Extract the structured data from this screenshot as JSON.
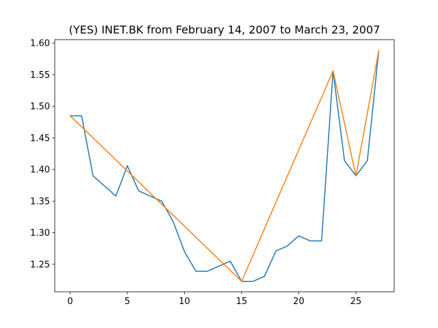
{
  "chart_data": {
    "type": "line",
    "title": "(YES) INET.BK from February 14, 2007 to March 23, 2007",
    "xlabel": "",
    "ylabel": "",
    "xlim": [
      -1.35,
      28.35
    ],
    "ylim": [
      1.2065,
      1.6055
    ],
    "x_ticks": [
      0,
      5,
      10,
      15,
      20,
      25
    ],
    "y_ticks": [
      1.25,
      1.3,
      1.35,
      1.4,
      1.45,
      1.5,
      1.55,
      1.6
    ],
    "grid": false,
    "series": [
      {
        "color": "#1f77b4",
        "x": [
          0,
          1,
          2,
          3,
          4,
          5,
          6,
          7,
          8,
          9,
          10,
          11,
          12,
          13,
          14,
          15,
          16,
          17,
          18,
          19,
          20,
          21,
          22,
          23,
          24,
          25,
          26,
          27
        ],
        "y": [
          1.485,
          1.485,
          1.39,
          1.374,
          1.358,
          1.406,
          1.366,
          1.358,
          1.35,
          1.318,
          1.27,
          1.239,
          1.239,
          1.247,
          1.255,
          1.223,
          1.223,
          1.231,
          1.271,
          1.279,
          1.295,
          1.287,
          1.287,
          1.556,
          1.414,
          1.39,
          1.414,
          1.588
        ]
      },
      {
        "color": "#ff7f0e",
        "x": [
          0,
          15,
          23,
          25,
          27
        ],
        "y": [
          1.485,
          1.223,
          1.556,
          1.39,
          1.588
        ]
      }
    ]
  }
}
